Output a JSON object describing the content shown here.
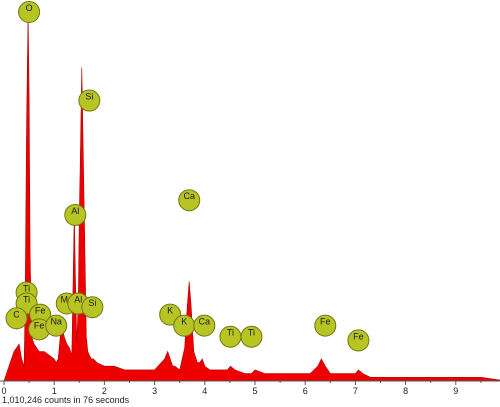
{
  "chart_data": {
    "type": "area",
    "title": "",
    "xlabel": "",
    "ylabel": "",
    "xlim": [
      0,
      10
    ],
    "ylim": [
      0,
      100
    ],
    "grid": false,
    "xticks": [
      "0",
      "1",
      "2",
      "3",
      "4",
      "5",
      "6",
      "7",
      "8",
      "9"
    ],
    "spectrum": {
      "x": [
        0.0,
        0.05,
        0.1,
        0.15,
        0.2,
        0.25,
        0.3,
        0.35,
        0.4,
        0.42,
        0.45,
        0.48,
        0.5,
        0.52,
        0.55,
        0.6,
        0.65,
        0.7,
        0.75,
        0.8,
        0.9,
        1.0,
        1.04,
        1.08,
        1.12,
        1.16,
        1.2,
        1.25,
        1.3,
        1.35,
        1.38,
        1.4,
        1.42,
        1.45,
        1.48,
        1.5,
        1.52,
        1.55,
        1.6,
        1.64,
        1.67,
        1.7,
        1.74,
        1.78,
        1.85,
        2.0,
        2.2,
        2.4,
        2.6,
        2.8,
        3.0,
        3.2,
        3.26,
        3.31,
        3.36,
        3.4,
        3.5,
        3.55,
        3.6,
        3.65,
        3.69,
        3.73,
        3.78,
        3.85,
        3.9,
        3.95,
        4.0,
        4.1,
        4.3,
        4.45,
        4.51,
        4.6,
        4.8,
        4.93,
        5.0,
        5.2,
        5.5,
        5.8,
        6.1,
        6.25,
        6.32,
        6.4,
        6.5,
        6.7,
        6.9,
        7.0,
        7.06,
        7.15,
        7.3,
        7.6,
        8.0,
        8.5,
        9.0,
        9.5,
        10.0
      ],
      "y": [
        0,
        2,
        4,
        6,
        8,
        9,
        10,
        6,
        4,
        20,
        70,
        100,
        78,
        35,
        12,
        10,
        9,
        8,
        8,
        8,
        7,
        6,
        5,
        6,
        12,
        15,
        12,
        10,
        9,
        7,
        30,
        46,
        30,
        10,
        22,
        45,
        60,
        85,
        45,
        12,
        8,
        7,
        6,
        6,
        5,
        4,
        4,
        3,
        3,
        3,
        3,
        6,
        8,
        6,
        4,
        4,
        3,
        6,
        9,
        20,
        27,
        20,
        8,
        5,
        5,
        6,
        4,
        3,
        3,
        3,
        4,
        3,
        2,
        2,
        3,
        2,
        2,
        2,
        2,
        4,
        6,
        4,
        2,
        2,
        2,
        2,
        3,
        2,
        1,
        1,
        1,
        1,
        1,
        1,
        0
      ]
    },
    "peaks": [
      {
        "element": "O",
        "x": 0.5,
        "label_y": 100
      },
      {
        "element": "Si",
        "x": 1.7,
        "label_y": 76
      },
      {
        "element": "Al",
        "x": 1.42,
        "label_y": 45
      },
      {
        "element": "Ti",
        "x": 0.45,
        "label_y": 24
      },
      {
        "element": "Ti",
        "x": 0.45,
        "label_y": 21
      },
      {
        "element": "C",
        "x": 0.25,
        "label_y": 17
      },
      {
        "element": "Fe",
        "x": 0.72,
        "label_y": 18
      },
      {
        "element": "Fe",
        "x": 0.7,
        "label_y": 14
      },
      {
        "element": "Na",
        "x": 1.04,
        "label_y": 15
      },
      {
        "element": "Mg",
        "x": 1.25,
        "label_y": 21
      },
      {
        "element": "Al",
        "x": 1.48,
        "label_y": 21
      },
      {
        "element": "Si",
        "x": 1.76,
        "label_y": 20
      },
      {
        "element": "K",
        "x": 3.31,
        "label_y": 18
      },
      {
        "element": "K",
        "x": 3.59,
        "label_y": 15
      },
      {
        "element": "Ca",
        "x": 3.69,
        "label_y": 49
      },
      {
        "element": "Ca",
        "x": 3.99,
        "label_y": 15
      },
      {
        "element": "Ti",
        "x": 4.51,
        "label_y": 12
      },
      {
        "element": "Ti",
        "x": 4.93,
        "label_y": 12
      },
      {
        "element": "Fe",
        "x": 6.4,
        "label_y": 15
      },
      {
        "element": "Fe",
        "x": 7.06,
        "label_y": 11
      }
    ],
    "fill_color": "#ee0000",
    "badge_color": "#b8c422",
    "badge_text_color": "#1b1b1b"
  },
  "caption": "1,010,246 counts in 76 seconds"
}
